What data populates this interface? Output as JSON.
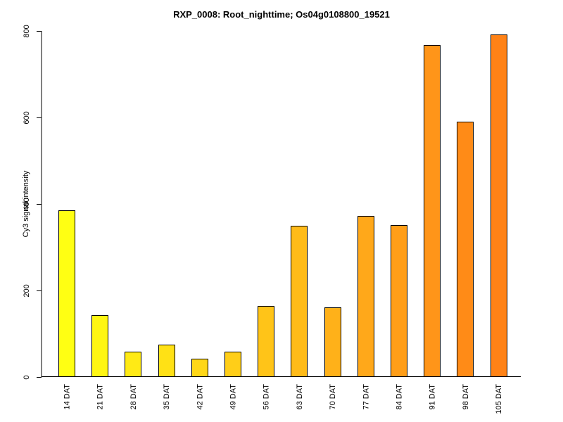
{
  "chart_data": {
    "type": "bar",
    "title": "RXP_0008: Root_nighttime; Os04g0108800_19521",
    "xlabel": "",
    "ylabel": "Cy3 signal intensity",
    "ylim": [
      0,
      800
    ],
    "yticks": [
      0,
      200,
      400,
      600,
      800
    ],
    "categories": [
      "14 DAT",
      "21 DAT",
      "28 DAT",
      "35 DAT",
      "42 DAT",
      "49 DAT",
      "56 DAT",
      "63 DAT",
      "70 DAT",
      "77 DAT",
      "84 DAT",
      "91 DAT",
      "98 DAT",
      "105 DAT"
    ],
    "values": [
      385,
      143,
      58,
      75,
      42,
      59,
      164,
      350,
      161,
      372,
      352,
      768,
      590,
      792
    ],
    "bar_colors": [
      "#ffff13",
      "#fff613",
      "#ffea15",
      "#ffe115",
      "#ffd717",
      "#ffce18",
      "#ffc418",
      "#ffbb19",
      "#ffb119",
      "#ffa81a",
      "#ff9e19",
      "#ff9519",
      "#ff8b17",
      "#ff8216"
    ],
    "bar_outline": "#000000",
    "grid": false,
    "legend": "none"
  }
}
